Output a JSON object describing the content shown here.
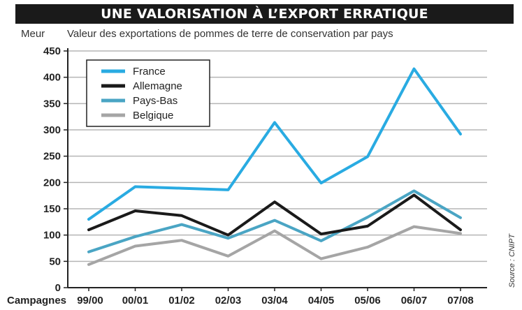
{
  "header": {
    "title": "UNE VALORISATION À L’EXPORT ERRATIQUE",
    "unit": "Meur",
    "subtitle": "Valeur des exportations de pommes de terre de conservation par pays",
    "source": "Source : CNIPT"
  },
  "chart_data": {
    "type": "line",
    "title": "UNE VALORISATION À L’EXPORT ERRATIQUE",
    "subtitle": "Valeur des exportations de pommes de terre de conservation par pays",
    "ylabel": "Meur",
    "xlabel": "Campagnes",
    "ylim": [
      0,
      450
    ],
    "yticks": [
      0,
      50,
      100,
      150,
      200,
      250,
      300,
      350,
      400,
      450
    ],
    "categories": [
      "99/00",
      "00/01",
      "01/02",
      "02/03",
      "03/04",
      "04/05",
      "05/06",
      "06/07",
      "07/08"
    ],
    "grid": true,
    "legend_position": "top-left",
    "series": [
      {
        "name": "France",
        "color": "#29abe2",
        "values": [
          130,
          192,
          189,
          186,
          314,
          199,
          249,
          416,
          292
        ]
      },
      {
        "name": "Allemagne",
        "color": "#1a1a1a",
        "values": [
          110,
          146,
          137,
          100,
          163,
          102,
          117,
          176,
          110
        ]
      },
      {
        "name": "Pays-Bas",
        "color": "#4aa5c4",
        "values": [
          68,
          97,
          120,
          94,
          128,
          89,
          134,
          184,
          133
        ]
      },
      {
        "name": "Belgique",
        "color": "#a5a5a5",
        "values": [
          44,
          79,
          90,
          60,
          108,
          55,
          77,
          116,
          103
        ]
      }
    ]
  }
}
